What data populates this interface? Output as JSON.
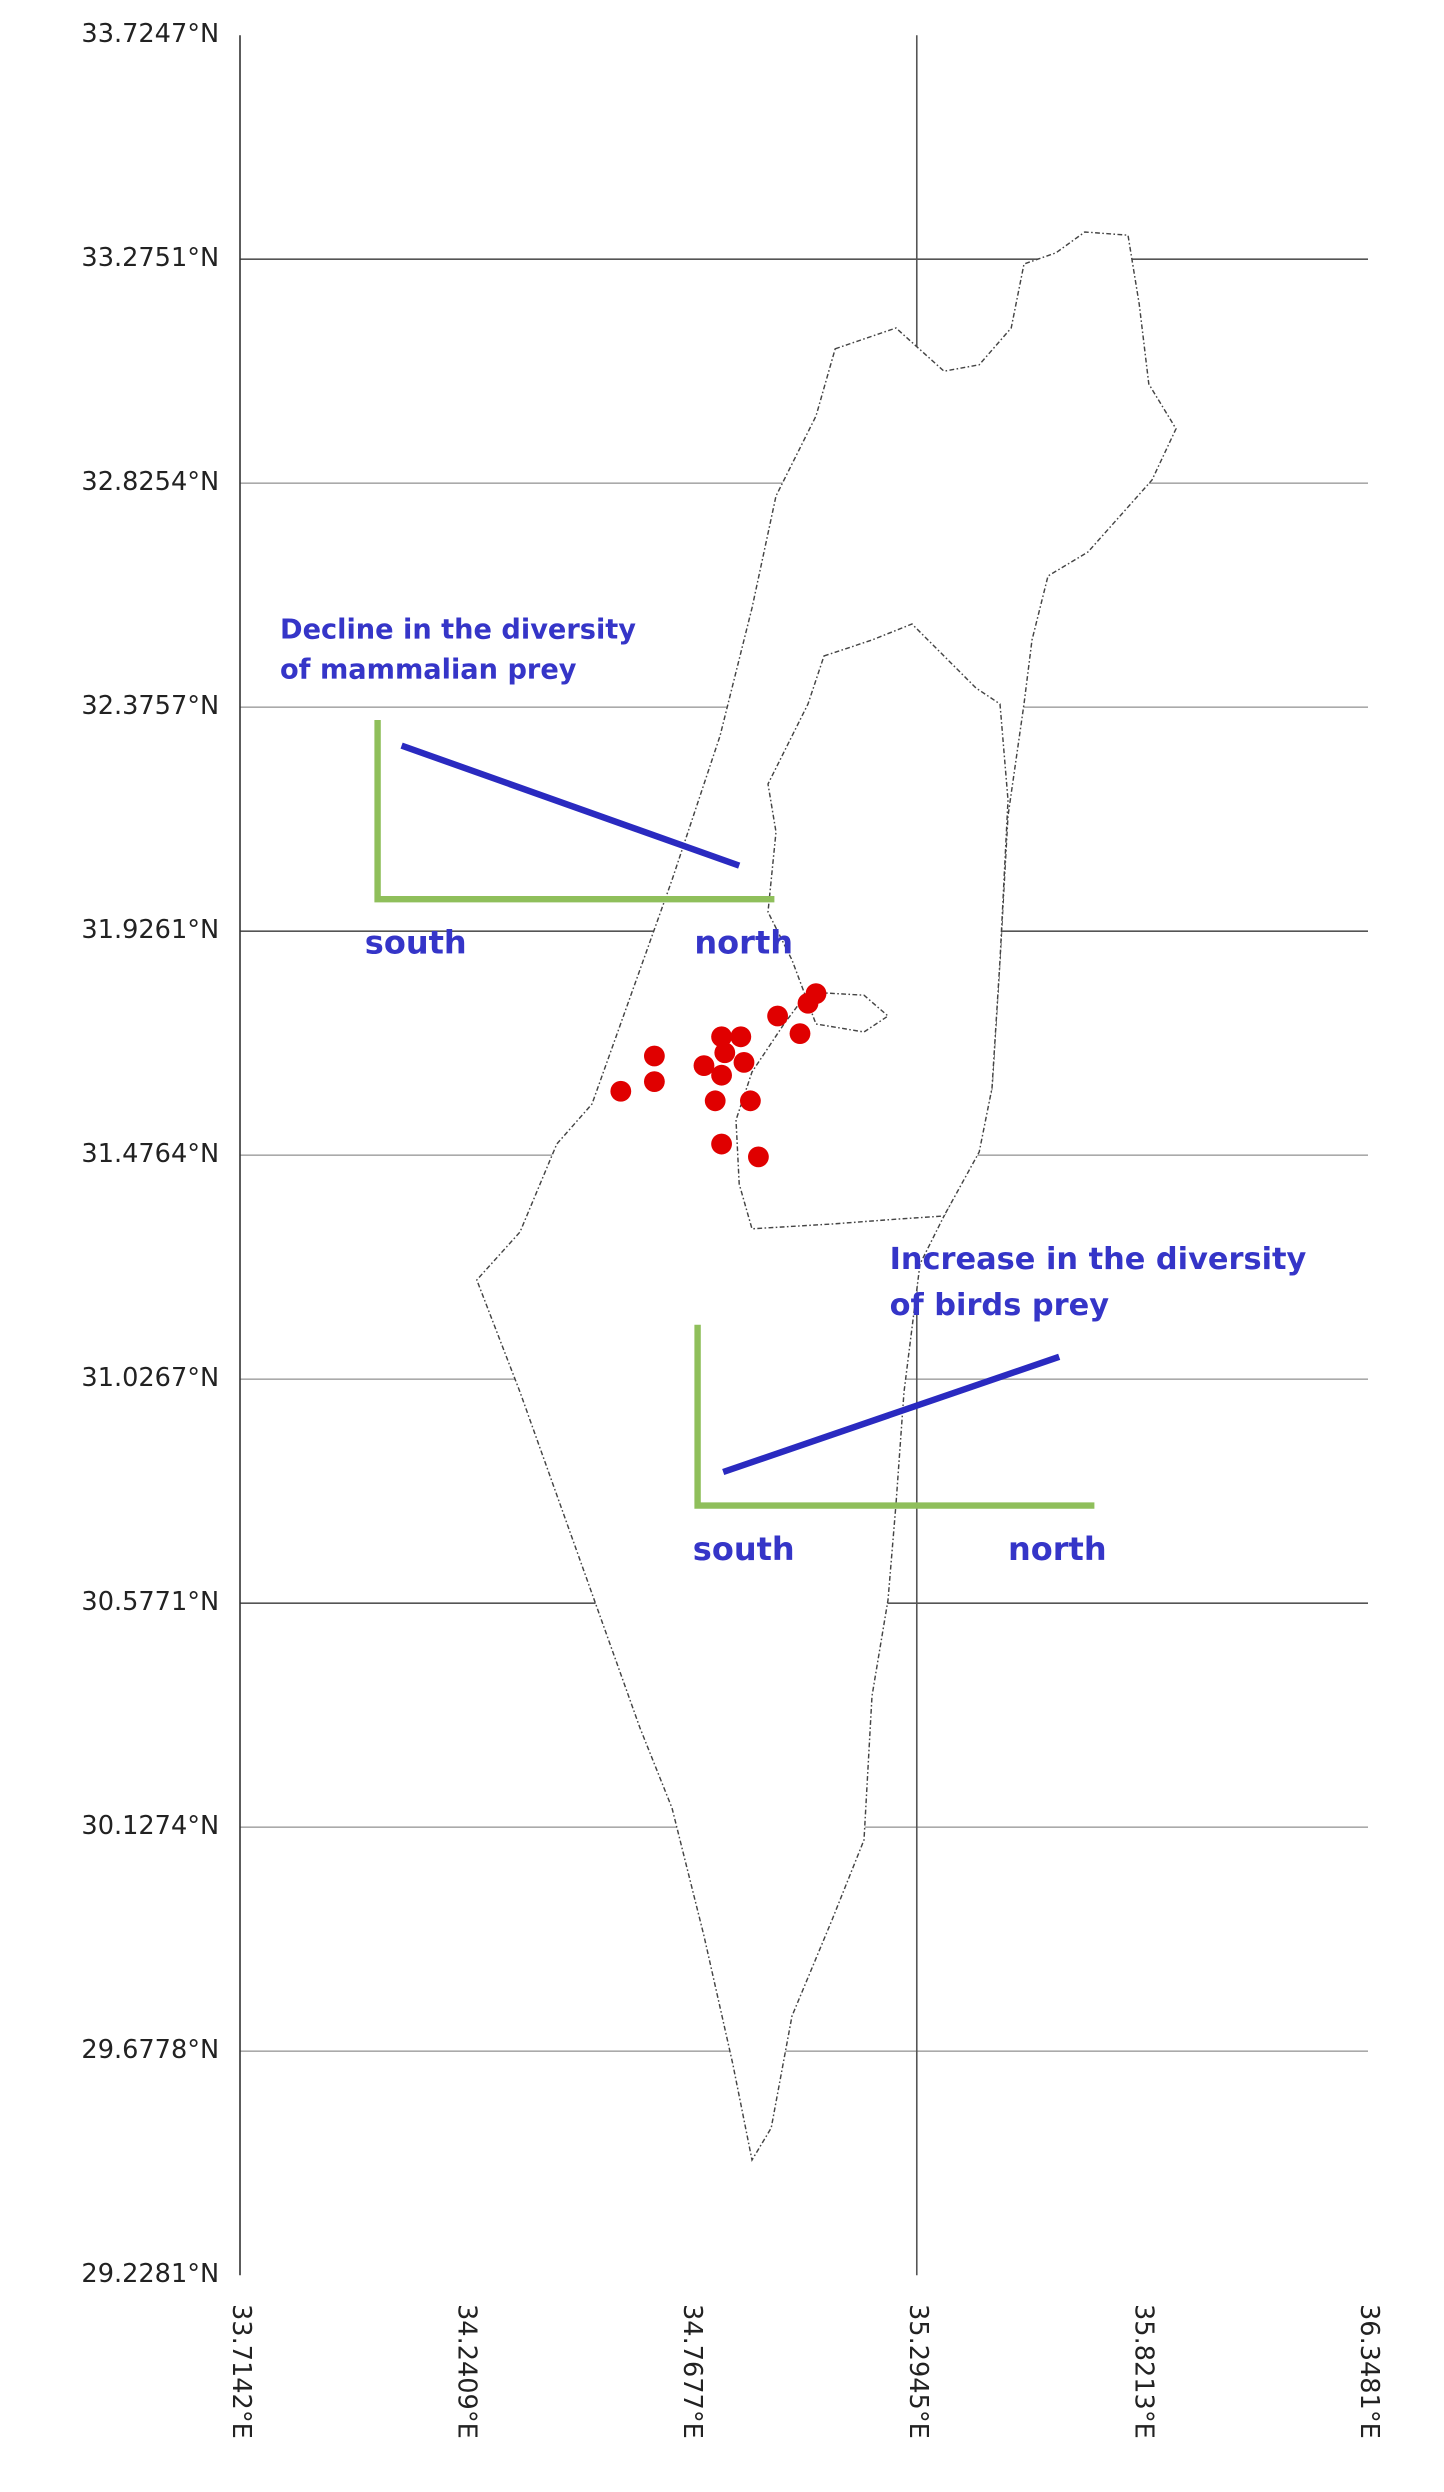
{
  "chart_data": {
    "type": "map",
    "xlim": [
      33.7142,
      36.3481
    ],
    "ylim": [
      29.2281,
      33.7247
    ],
    "xticks": [
      {
        "value": 33.7142,
        "label": "33.7142°E"
      },
      {
        "value": 34.2409,
        "label": "34.2409°E"
      },
      {
        "value": 34.7677,
        "label": "34.7677°E"
      },
      {
        "value": 35.2945,
        "label": "35.2945°E"
      },
      {
        "value": 35.8213,
        "label": "35.8213°E"
      },
      {
        "value": 36.3481,
        "label": "36.3481°E"
      }
    ],
    "yticks": [
      {
        "value": 33.7247,
        "label": "33.7247°N"
      },
      {
        "value": 33.2751,
        "label": "33.2751°N"
      },
      {
        "value": 32.8254,
        "label": "32.8254°N"
      },
      {
        "value": 32.3757,
        "label": "32.3757°N"
      },
      {
        "value": 31.9261,
        "label": "31.9261°N"
      },
      {
        "value": 31.4764,
        "label": "31.4764°N"
      },
      {
        "value": 31.0267,
        "label": "31.0267°N"
      },
      {
        "value": 30.5771,
        "label": "30.5771°N"
      },
      {
        "value": 30.1274,
        "label": "30.1274°N"
      },
      {
        "value": 29.6778,
        "label": "29.6778°N"
      },
      {
        "value": 29.2281,
        "label": "29.2281°N"
      }
    ],
    "grid": true,
    "series": [
      {
        "color": "#e00000",
        "x": [
          34.6034,
          34.6818,
          34.6818,
          34.7976,
          34.8238,
          34.8387,
          34.8462,
          34.8387,
          34.8836,
          34.891,
          34.906,
          34.8387,
          34.9247,
          34.9695,
          35.0218,
          35.0405,
          35.0592
        ],
        "values": [
          31.6048,
          31.6755,
          31.6241,
          31.6562,
          31.5856,
          31.7141,
          31.682,
          31.637,
          31.7141,
          31.6627,
          31.5856,
          31.4988,
          31.4731,
          31.7558,
          31.7205,
          31.7815,
          31.8008
        ]
      }
    ],
    "annotations": [
      "Decline in the diversity",
      "of mammalian prey",
      "south",
      "north",
      "Increase in the diversity",
      "of birds prey",
      "south",
      "north"
    ]
  }
}
